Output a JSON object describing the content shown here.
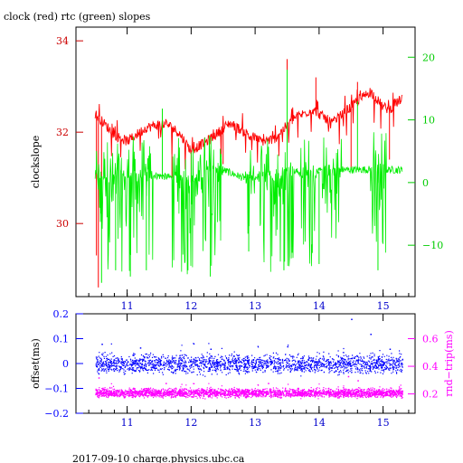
{
  "colors": {
    "clock": "#ff0000",
    "rtc": "#00ee00",
    "offset": "#0000ff",
    "roundtrip": "#ff00ff",
    "frame": "#000000"
  },
  "footer": "2017-09-10  charge.physics.ubc.ca",
  "chart_data": [
    {
      "type": "line",
      "title": "clock (red) rtc (green) slopes",
      "xlabel": "",
      "ylabel": "clockslope",
      "xlim": [
        10.2,
        15.5
      ],
      "xticks": [
        11,
        12,
        13,
        14,
        15
      ],
      "x_tick_labels": [
        "11",
        "12",
        "13",
        "14",
        "15"
      ],
      "y_left": {
        "lim": [
          28.4,
          34.3
        ],
        "ticks": [
          30,
          32,
          34
        ],
        "tick_labels": [
          "30",
          "32",
          "34"
        ],
        "color": "#cc0000"
      },
      "y_right": {
        "lim": [
          -18.2,
          24.8
        ],
        "ticks": [
          -10,
          0,
          10,
          20
        ],
        "tick_labels": [
          "−10",
          "0",
          "10",
          "20"
        ],
        "color": "#00cc00"
      },
      "x_range_data": [
        10.5,
        15.3
      ],
      "series": [
        {
          "axis": "left",
          "color": "#ff0000",
          "trend": [
            [
              10.5,
              32.4
            ],
            [
              10.8,
              31.95
            ],
            [
              11.0,
              31.8
            ],
            [
              11.3,
              32.1
            ],
            [
              11.6,
              32.2
            ],
            [
              11.8,
              32.0
            ],
            [
              12.0,
              31.6
            ],
            [
              12.3,
              31.85
            ],
            [
              12.6,
              32.2
            ],
            [
              12.9,
              31.95
            ],
            [
              13.1,
              31.8
            ],
            [
              13.3,
              31.85
            ],
            [
              13.6,
              32.3
            ],
            [
              13.9,
              32.5
            ],
            [
              14.1,
              32.3
            ],
            [
              14.2,
              32.2
            ],
            [
              14.5,
              32.55
            ],
            [
              14.8,
              32.9
            ],
            [
              15.0,
              32.55
            ],
            [
              15.1,
              32.5
            ],
            [
              15.3,
              32.75
            ]
          ],
          "spikes": [
            [
              10.52,
              29.3
            ],
            [
              10.55,
              28.6
            ],
            [
              10.6,
              30.6
            ],
            [
              11.7,
              31.0
            ],
            [
              12.0,
              30.9
            ],
            [
              12.5,
              31.3
            ],
            [
              13.5,
              33.6
            ],
            [
              13.95,
              33.2
            ],
            [
              14.6,
              33.1
            ],
            [
              14.5,
              31.2
            ],
            [
              15.1,
              31.4
            ]
          ]
        },
        {
          "axis": "right",
          "color": "#00ee00",
          "baseline": [
            [
              10.5,
              1.0
            ],
            [
              11.4,
              1.2
            ],
            [
              12.0,
              0.4
            ],
            [
              12.4,
              2.4
            ],
            [
              12.8,
              0.8
            ],
            [
              13.2,
              1.0
            ],
            [
              13.5,
              1.8
            ],
            [
              13.9,
              1.6
            ],
            [
              14.2,
              2.0
            ],
            [
              14.9,
              2.1
            ],
            [
              15.3,
              2.0
            ]
          ],
          "noisy_ranges": [
            [
              10.5,
              11.4
            ],
            [
              11.7,
              12.5
            ],
            [
              12.85,
              13.0
            ],
            [
              13.05,
              13.6
            ],
            [
              13.7,
              13.95
            ],
            [
              14.05,
              14.35
            ],
            [
              14.8,
              15.05
            ]
          ],
          "extremes": [
            [
              10.6,
              -16
            ],
            [
              10.82,
              -14
            ],
            [
              11.05,
              -15
            ],
            [
              11.3,
              -14
            ],
            [
              11.55,
              11.8
            ],
            [
              11.95,
              -14
            ],
            [
              12.3,
              -15
            ],
            [
              12.9,
              -11
            ],
            [
              13.45,
              -14
            ],
            [
              13.5,
              18
            ],
            [
              14.0,
              -13
            ],
            [
              14.6,
              13
            ],
            [
              14.92,
              -14
            ]
          ]
        }
      ]
    },
    {
      "type": "scatter",
      "title": "",
      "xlabel": "",
      "ylabel": "offset(ms)",
      "y2label": "rnd−trip(ms)",
      "xlim": [
        10.2,
        15.5
      ],
      "xticks": [
        11,
        12,
        13,
        14,
        15
      ],
      "x_tick_labels": [
        "11",
        "12",
        "13",
        "14",
        "15"
      ],
      "y_left": {
        "lim": [
          -0.2,
          0.2
        ],
        "ticks": [
          -0.2,
          -0.1,
          0,
          0.1,
          0.2
        ],
        "tick_labels": [
          "−0.2",
          "−0.1",
          "0",
          "0.1",
          "0.2"
        ],
        "color": "#0000ff"
      },
      "y_right": {
        "lim": [
          0.06,
          0.78
        ],
        "ticks": [
          0.2,
          0.4,
          0.6
        ],
        "tick_labels": [
          "0.2",
          "0.4",
          "0.6"
        ],
        "color": "#ff00ff"
      },
      "x_range_data": [
        10.5,
        15.3
      ],
      "series": [
        {
          "axis": "left",
          "color": "#0000ff",
          "center": 0.0,
          "spread": 0.03,
          "outliers": [
            [
              10.6,
              0.08
            ],
            [
              11.2,
              0.065
            ],
            [
              12.3,
              0.06
            ],
            [
              13.5,
              0.07
            ],
            [
              14.5,
              0.18
            ],
            [
              14.8,
              0.12
            ],
            [
              15.1,
              0.06
            ]
          ]
        },
        {
          "axis": "right",
          "color": "#ff00ff",
          "center": 0.21,
          "spread": 0.025,
          "outliers": [
            [
              10.55,
              0.32
            ],
            [
              11.6,
              0.28
            ],
            [
              13.2,
              0.28
            ],
            [
              14.45,
              0.33
            ],
            [
              14.6,
              0.3
            ]
          ]
        }
      ]
    }
  ]
}
